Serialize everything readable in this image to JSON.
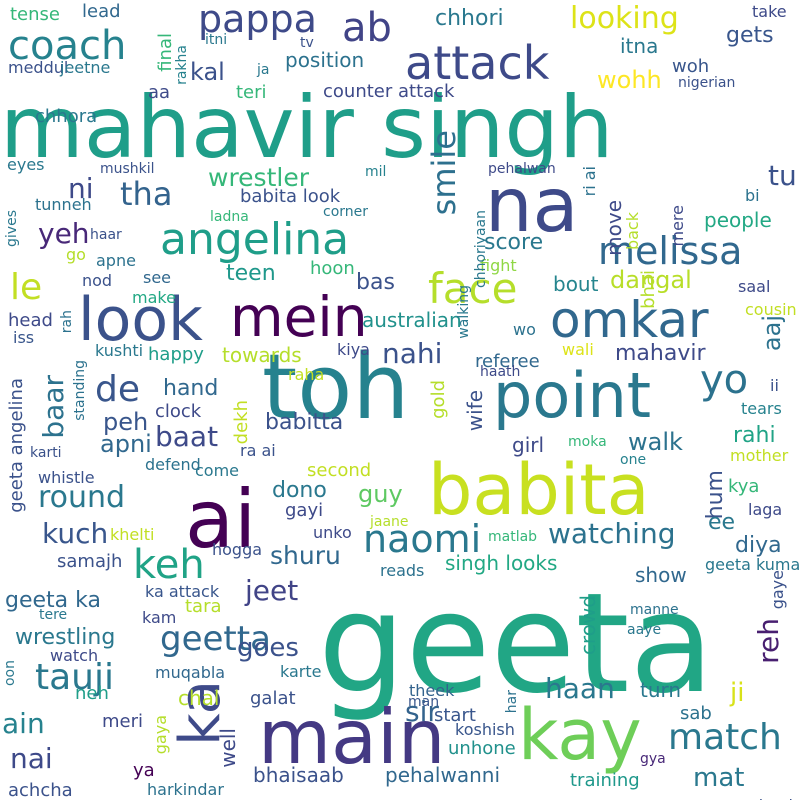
{
  "palette": {
    "background": "#ffffff",
    "colors": [
      "#440154",
      "#482878",
      "#3e4a89",
      "#31688e",
      "#26828e",
      "#1f9e89",
      "#35b779",
      "#6ece58",
      "#b5de2b",
      "#fde725"
    ]
  },
  "words": [
    {
      "text": "geeta",
      "color": "#21a685"
    },
    {
      "text": "mahavir singh",
      "color": "#1f9e89"
    },
    {
      "text": "toh",
      "color": "#26828e"
    },
    {
      "text": "ai",
      "color": "#440154"
    },
    {
      "text": "babita",
      "color": "#c8e020"
    },
    {
      "text": "main",
      "color": "#443983"
    },
    {
      "text": "na",
      "color": "#3e4a89"
    },
    {
      "text": "point",
      "color": "#2a788e"
    },
    {
      "text": "kay",
      "color": "#6ece58"
    },
    {
      "text": "look",
      "color": "#3b528b"
    },
    {
      "text": "mein",
      "color": "#440154"
    },
    {
      "text": "omkar",
      "color": "#31688e"
    },
    {
      "text": "angelina",
      "color": "#1f9e89"
    },
    {
      "text": "face",
      "color": "#b5de2b"
    },
    {
      "text": "attack",
      "color": "#3e4a89"
    },
    {
      "text": "coach",
      "color": "#26828e"
    },
    {
      "text": "pappa",
      "color": "#3e4a89"
    },
    {
      "text": "ab",
      "color": "#414487"
    },
    {
      "text": "melissa",
      "color": "#31688e"
    },
    {
      "text": "keh",
      "color": "#20a386"
    },
    {
      "text": "ka",
      "color": "#3e4a89"
    },
    {
      "text": "yo",
      "color": "#2c728e"
    },
    {
      "text": "naomi",
      "color": "#2a788e"
    },
    {
      "text": "match",
      "color": "#2a788e"
    },
    {
      "text": "tauji",
      "color": "#2a788e"
    },
    {
      "text": "geetta",
      "color": "#31688e"
    },
    {
      "text": "le",
      "color": "#c2df23"
    },
    {
      "text": "de",
      "color": "#39568c"
    },
    {
      "text": "smile",
      "color": "#2d708e"
    },
    {
      "text": "tha",
      "color": "#33638d"
    },
    {
      "text": "round",
      "color": "#2a788e"
    },
    {
      "text": "watching",
      "color": "#2c728e"
    },
    {
      "text": "haan",
      "color": "#2a788e"
    },
    {
      "text": "looking",
      "color": "#dde318"
    },
    {
      "text": "yeh",
      "color": "#482878"
    },
    {
      "text": "ni",
      "color": "#3e4a89"
    },
    {
      "text": "tu",
      "color": "#3b528b"
    },
    {
      "text": "baat",
      "color": "#3e4a89"
    },
    {
      "text": "nahi",
      "color": "#3b528b"
    },
    {
      "text": "kuch",
      "color": "#39568c"
    },
    {
      "text": "jeet",
      "color": "#414487"
    },
    {
      "text": "sir",
      "color": "#33638d"
    },
    {
      "text": "wrestler",
      "color": "#35b779"
    },
    {
      "text": "dangal",
      "color": "#b8de29"
    },
    {
      "text": "baar",
      "color": "#2c728e"
    },
    {
      "text": "ain",
      "color": "#26828e"
    },
    {
      "text": "nai",
      "color": "#3e4a89"
    },
    {
      "text": "reh",
      "color": "#481f70"
    },
    {
      "text": "shuru",
      "color": "#31688e"
    },
    {
      "text": "goes",
      "color": "#3b528b"
    },
    {
      "text": "walk",
      "color": "#2c728e"
    },
    {
      "text": "mat",
      "color": "#2a788e"
    },
    {
      "text": "ji",
      "color": "#d8e219"
    },
    {
      "text": "guy",
      "color": "#5ec962"
    },
    {
      "text": "diya",
      "color": "#31688e"
    },
    {
      "text": "gets",
      "color": "#39568c"
    },
    {
      "text": "kal",
      "color": "#3b528b"
    },
    {
      "text": "teen",
      "color": "#1f988b"
    },
    {
      "text": "bas",
      "color": "#3b528b"
    },
    {
      "text": "score",
      "color": "#2a788e"
    },
    {
      "text": "move",
      "color": "#3e4a89"
    },
    {
      "text": "people",
      "color": "#22a884"
    },
    {
      "text": "peh",
      "color": "#39568c"
    },
    {
      "text": "apni",
      "color": "#31688e"
    },
    {
      "text": "hand",
      "color": "#31688e"
    },
    {
      "text": "aaj",
      "color": "#2c728e"
    },
    {
      "text": "chhori",
      "color": "#2a788e"
    },
    {
      "text": "position",
      "color": "#2c728e"
    },
    {
      "text": "wohh",
      "color": "#fde725"
    },
    {
      "text": "itna",
      "color": "#2a788e"
    },
    {
      "text": "babitta",
      "color": "#3b528b"
    },
    {
      "text": "dono",
      "color": "#2a788e"
    },
    {
      "text": "hum",
      "color": "#3b528b"
    },
    {
      "text": "ee",
      "color": "#2a788e"
    },
    {
      "text": "rahi",
      "color": "#20a386"
    },
    {
      "text": "kya",
      "color": "#35b779"
    },
    {
      "text": "girl",
      "color": "#3e4a89"
    },
    {
      "text": "bout",
      "color": "#25858e"
    },
    {
      "text": "wife",
      "color": "#3b528b"
    },
    {
      "text": "gold",
      "color": "#b5de2b"
    },
    {
      "text": "crowd",
      "color": "#1f9e89"
    },
    {
      "text": "mahavir",
      "color": "#3e4a89"
    },
    {
      "text": "referee",
      "color": "#31688e"
    },
    {
      "text": "australian",
      "color": "#21918c"
    },
    {
      "text": "happy",
      "color": "#1f9e89"
    },
    {
      "text": "towards",
      "color": "#b5de2b"
    },
    {
      "text": "clock",
      "color": "#3e4a89"
    },
    {
      "text": "pehalwanni",
      "color": "#31688e"
    },
    {
      "text": "bhaisaab",
      "color": "#3b528b"
    },
    {
      "text": "wrestling",
      "color": "#2a788e"
    },
    {
      "text": "geeta ka",
      "color": "#31688e"
    },
    {
      "text": "geeta angelina",
      "color": "#3b528b"
    },
    {
      "text": "counter attack",
      "color": "#3e4a89"
    },
    {
      "text": "babita look",
      "color": "#3b528b"
    },
    {
      "text": "singh looks",
      "color": "#22a884"
    },
    {
      "text": "samajh",
      "color": "#3b528b"
    },
    {
      "text": "show",
      "color": "#31688e"
    },
    {
      "text": "turn",
      "color": "#2a788e"
    },
    {
      "text": "sab",
      "color": "#2c728e"
    },
    {
      "text": "training",
      "color": "#1f988b"
    },
    {
      "text": "unhone",
      "color": "#21918c"
    },
    {
      "text": "koshish",
      "color": "#39568c"
    },
    {
      "text": "start",
      "color": "#39568c"
    },
    {
      "text": "theek",
      "color": "#33638d"
    },
    {
      "text": "man",
      "color": "#39568c"
    },
    {
      "text": "har",
      "color": "#2c728e"
    },
    {
      "text": "chal",
      "color": "#b5de2b"
    },
    {
      "text": "galat",
      "color": "#3b528b"
    },
    {
      "text": "neh",
      "color": "#1f9e89"
    },
    {
      "text": "meri",
      "color": "#3e4a89"
    },
    {
      "text": "ya",
      "color": "#440154"
    },
    {
      "text": "gaya",
      "color": "#b5de2b"
    },
    {
      "text": "well",
      "color": "#3e4a89"
    },
    {
      "text": "harkindar",
      "color": "#2c728e"
    },
    {
      "text": "achcha",
      "color": "#3b528b"
    },
    {
      "text": "watch",
      "color": "#3e4a89"
    },
    {
      "text": "kam",
      "color": "#3e4a89"
    },
    {
      "text": "muqabla",
      "color": "#31688e"
    },
    {
      "text": "karte",
      "color": "#2a788e"
    },
    {
      "text": "tara",
      "color": "#b5de2b"
    },
    {
      "text": "ka attack",
      "color": "#39568c"
    },
    {
      "text": "hogga",
      "color": "#3b528b"
    },
    {
      "text": "khelti",
      "color": "#c2df23"
    },
    {
      "text": "unko",
      "color": "#3e4a89"
    },
    {
      "text": "gayi",
      "color": "#3e4a89"
    },
    {
      "text": "second",
      "color": "#c2df23"
    },
    {
      "text": "come",
      "color": "#2a788e"
    },
    {
      "text": "defend",
      "color": "#2c728e"
    },
    {
      "text": "whistle",
      "color": "#3b528b"
    },
    {
      "text": "karti",
      "color": "#3b528b"
    },
    {
      "text": "ra ai",
      "color": "#3b528b"
    },
    {
      "text": "dekh",
      "color": "#c2df23"
    },
    {
      "text": "raha",
      "color": "#c2df23"
    },
    {
      "text": "kiya",
      "color": "#3e4a89"
    },
    {
      "text": "haath",
      "color": "#3e4a89"
    },
    {
      "text": "wali",
      "color": "#dde318"
    },
    {
      "text": "wo",
      "color": "#2c728e"
    },
    {
      "text": "moka",
      "color": "#35b779"
    },
    {
      "text": "one",
      "color": "#26828e"
    },
    {
      "text": "mother",
      "color": "#c2df23"
    },
    {
      "text": "laga",
      "color": "#3e4a89"
    },
    {
      "text": "tears",
      "color": "#26828e"
    },
    {
      "text": "ii",
      "color": "#3b528b"
    },
    {
      "text": "cousin",
      "color": "#c2df23"
    },
    {
      "text": "saal",
      "color": "#3e4a89"
    },
    {
      "text": "fight",
      "color": "#8fd744"
    },
    {
      "text": "chhoriyaan",
      "color": "#2a788e"
    },
    {
      "text": "walking",
      "color": "#2a788e"
    },
    {
      "text": "hoon",
      "color": "#35b779"
    },
    {
      "text": "see",
      "color": "#31688e"
    },
    {
      "text": "make",
      "color": "#22a884"
    },
    {
      "text": "nod",
      "color": "#3b528b"
    },
    {
      "text": "go",
      "color": "#b5de2b"
    },
    {
      "text": "apne",
      "color": "#2c728e"
    },
    {
      "text": "haar",
      "color": "#3b528b"
    },
    {
      "text": "ladna",
      "color": "#35b779"
    },
    {
      "text": "corner",
      "color": "#2a788e"
    },
    {
      "text": "mil",
      "color": "#26828e"
    },
    {
      "text": "eyes",
      "color": "#2a788e"
    },
    {
      "text": "mushkil",
      "color": "#3b528b"
    },
    {
      "text": "tunneh",
      "color": "#2c728e"
    },
    {
      "text": "gives",
      "color": "#2a788e"
    },
    {
      "text": "pehalwan",
      "color": "#3e4a89"
    },
    {
      "text": "ri ai",
      "color": "#2c728e"
    },
    {
      "text": "bhai",
      "color": "#b5de2b"
    },
    {
      "text": "back",
      "color": "#b5de2b"
    },
    {
      "text": "mere",
      "color": "#3e4a89"
    },
    {
      "text": "bi",
      "color": "#2c728e"
    },
    {
      "text": "head",
      "color": "#3e4a89"
    },
    {
      "text": "iss",
      "color": "#39568c"
    },
    {
      "text": "rah",
      "color": "#2c728e"
    },
    {
      "text": "standing",
      "color": "#2c728e"
    },
    {
      "text": "kushti",
      "color": "#2a788e"
    },
    {
      "text": "aa",
      "color": "#3e4a89"
    },
    {
      "text": "teri",
      "color": "#35b779"
    },
    {
      "text": "chhora",
      "color": "#2a788e"
    },
    {
      "text": "meddul",
      "color": "#3b528b"
    },
    {
      "text": "jeetne",
      "color": "#2a788e"
    },
    {
      "text": "tense",
      "color": "#35b779"
    },
    {
      "text": "lead",
      "color": "#31688e"
    },
    {
      "text": "final",
      "color": "#35b779"
    },
    {
      "text": "rakha",
      "color": "#26828e"
    },
    {
      "text": "itni",
      "color": "#2a788e"
    },
    {
      "text": "ja",
      "color": "#2a788e"
    },
    {
      "text": "tv",
      "color": "#3b528b"
    },
    {
      "text": "take",
      "color": "#3e4a89"
    },
    {
      "text": "woh",
      "color": "#39568c"
    },
    {
      "text": "nigerian",
      "color": "#3b528b"
    },
    {
      "text": "gaye",
      "color": "#3b528b"
    },
    {
      "text": "geeta kumari",
      "color": "#2a788e"
    },
    {
      "text": "manne",
      "color": "#2c728e"
    },
    {
      "text": "aaye",
      "color": "#2a788e"
    },
    {
      "text": "gya",
      "color": "#482878"
    },
    {
      "text": "chaal",
      "color": "#3b528b"
    },
    {
      "text": "tere",
      "color": "#2a788e"
    },
    {
      "text": "oon",
      "color": "#2a788e"
    },
    {
      "text": "jaane",
      "color": "#b5de2b"
    },
    {
      "text": "matlab",
      "color": "#35b779"
    },
    {
      "text": "reads",
      "color": "#2c728e"
    },
    {
      "text": "pakad",
      "color": "#2a788e"
    }
  ]
}
